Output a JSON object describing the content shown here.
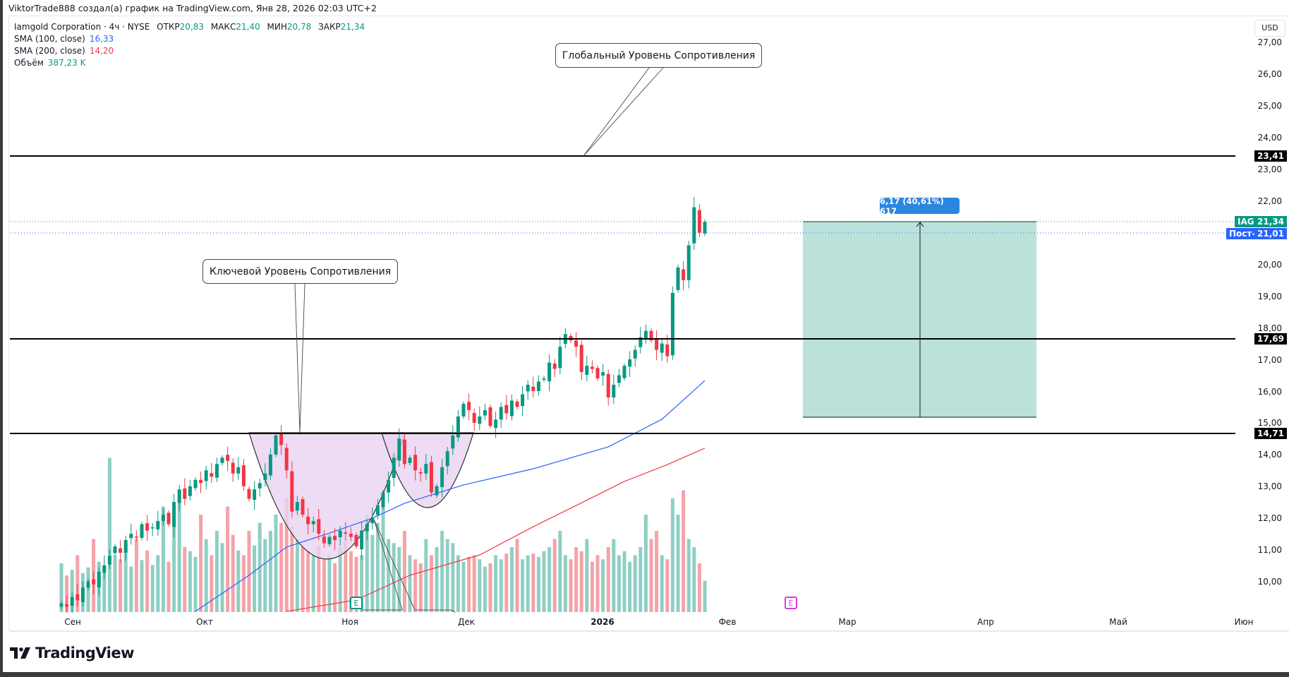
{
  "header": {
    "attribution": "ViktorTrade888 создал(а) график на TradingView.com, Янв 28, 2026 02:03 UTC+2"
  },
  "legend": {
    "symbol": "Iamgold Corporation · 4ч · NYSE",
    "open_label": "ОТКР",
    "open": "20,83",
    "high_label": "МАКС",
    "high": "21,40",
    "low_label": "МИН",
    "low": "20,78",
    "close_label": "ЗАКР",
    "close": "21,34",
    "sma100_label": "SMA (100, close)",
    "sma100_value": "16,33",
    "sma200_label": "SMA (200, close)",
    "sma200_value": "14,20",
    "volume_label": "Объём",
    "volume_value": "387,23 K"
  },
  "price_axis": {
    "currency": "USD",
    "ticks": [
      "27,00",
      "26,00",
      "25,00",
      "24,00",
      "23,00",
      "22,00",
      "21,00",
      "20,00",
      "19,00",
      "18,00",
      "17,00",
      "16,00",
      "15,00",
      "14,00",
      "13,00",
      "12,00",
      "11,00",
      "10,00"
    ],
    "level_badges": [
      "23,41",
      "17,69",
      "14,71"
    ],
    "last_price_symbol": "IAG",
    "last_price": "21,34",
    "post_label": "Пост-",
    "post_price": "21,01"
  },
  "time_axis": {
    "labels": [
      "Сен",
      "Окт",
      "Ноя",
      "Дек",
      "2026",
      "Фев",
      "Мар",
      "Апр",
      "Май",
      "Июн"
    ]
  },
  "annotations": {
    "global_resistance": "Глобальный Уровень Сопротивления",
    "key_resistance": "Ключевой Уровень Сопротивления",
    "measure": "6,17 (40,61%) 617",
    "earnings_marker": "E"
  },
  "colors": {
    "up": "#089981",
    "down": "#f23645",
    "vol_up": "#8fcfc4",
    "vol_down": "#f4a3a8",
    "sma100": "#2962ff",
    "sma200": "#f23645",
    "cup": "#e8d3f0",
    "measure": "#b2dfd6"
  },
  "brand": "TradingView",
  "chart_data": {
    "type": "candlestick",
    "title": "Iamgold Corporation · 4ч · NYSE",
    "ylim": [
      9,
      27.5
    ],
    "horizontal_levels": [
      23.41,
      17.69,
      14.71
    ],
    "last_price": 21.34,
    "post_market": 21.01,
    "measure": {
      "from": 15.17,
      "to": 21.34,
      "change": 6.17,
      "percent": 40.61,
      "bars": 617
    },
    "close": [
      9.3,
      9.2,
      9.5,
      9.4,
      9.8,
      10.0,
      9.9,
      10.3,
      10.5,
      10.8,
      11.1,
      10.9,
      11.3,
      11.5,
      11.4,
      11.8,
      11.6,
      11.7,
      11.9,
      12.1,
      11.8,
      12.5,
      12.9,
      12.6,
      13.0,
      13.2,
      13.1,
      13.5,
      13.3,
      13.7,
      13.9,
      13.8,
      13.4,
      13.6,
      13.0,
      12.6,
      12.9,
      13.1,
      13.4,
      14.0,
      14.6,
      14.3,
      13.5,
      12.2,
      12.5,
      12.1,
      11.8,
      11.9,
      11.5,
      11.2,
      11.4,
      11.3,
      11.6,
      11.5,
      11.4,
      11.1,
      11.6,
      11.8,
      12.0,
      12.4,
      12.8,
      13.2,
      13.9,
      14.5,
      13.7,
      13.9,
      13.5,
      13.4,
      13.7,
      12.8,
      13.0,
      13.6,
      14.1,
      14.6,
      15.2,
      15.6,
      15.4,
      15.0,
      15.2,
      15.4,
      14.9,
      15.1,
      15.5,
      15.3,
      15.7,
      15.5,
      15.9,
      16.2,
      16.0,
      16.3,
      16.4,
      16.9,
      16.7,
      17.4,
      17.8,
      17.6,
      17.4,
      16.6,
      16.8,
      16.7,
      16.4,
      16.6,
      15.8,
      16.2,
      16.5,
      16.8,
      17.0,
      17.3,
      17.7,
      17.9,
      17.6,
      17.3,
      17.5,
      17.1,
      19.1,
      19.9,
      19.5,
      20.6,
      21.8,
      21.0,
      21.34
    ],
    "volume_k": [
      600,
      450,
      520,
      700,
      480,
      550,
      900,
      620,
      580,
      1900,
      700,
      650,
      820,
      560,
      900,
      640,
      760,
      580,
      700,
      1300,
      620,
      1100,
      1400,
      800,
      750,
      680,
      1200,
      900,
      700,
      1000,
      850,
      1300,
      950,
      760,
      700,
      1000,
      820,
      1100,
      900,
      1000,
      1200,
      1100,
      1400,
      1050,
      900,
      800,
      750,
      700,
      820,
      650,
      700,
      600,
      800,
      900,
      750,
      680,
      700,
      1200,
      950,
      1100,
      1300,
      900,
      850,
      800,
      1000,
      700,
      650,
      600,
      900,
      700,
      800,
      1000,
      900,
      850,
      700,
      620,
      680,
      700,
      650,
      560,
      600,
      700,
      650,
      720,
      800,
      900,
      650,
      700,
      720,
      680,
      750,
      800,
      900,
      1000,
      700,
      650,
      800,
      750,
      900,
      620,
      700,
      650,
      800,
      900,
      700,
      750,
      620,
      700,
      800,
      1200,
      900,
      1000,
      700,
      650,
      1400,
      1200,
      1500,
      900,
      800,
      600,
      387
    ],
    "sma100": [
      [
        25,
        9.05
      ],
      [
        35,
        10.19
      ],
      [
        42,
        11.08
      ],
      [
        50,
        11.52
      ],
      [
        58,
        11.99
      ],
      [
        64,
        12.46
      ],
      [
        75,
        13.04
      ],
      [
        88,
        13.55
      ],
      [
        102,
        14.24
      ],
      [
        112,
        15.11
      ],
      [
        120,
        16.33
      ]
    ],
    "sma200": [
      [
        42,
        9.05
      ],
      [
        55,
        9.41
      ],
      [
        65,
        10.19
      ],
      [
        78,
        10.83
      ],
      [
        88,
        11.72
      ],
      [
        96,
        12.39
      ],
      [
        105,
        13.15
      ],
      [
        113,
        13.68
      ],
      [
        120,
        14.2
      ]
    ]
  }
}
